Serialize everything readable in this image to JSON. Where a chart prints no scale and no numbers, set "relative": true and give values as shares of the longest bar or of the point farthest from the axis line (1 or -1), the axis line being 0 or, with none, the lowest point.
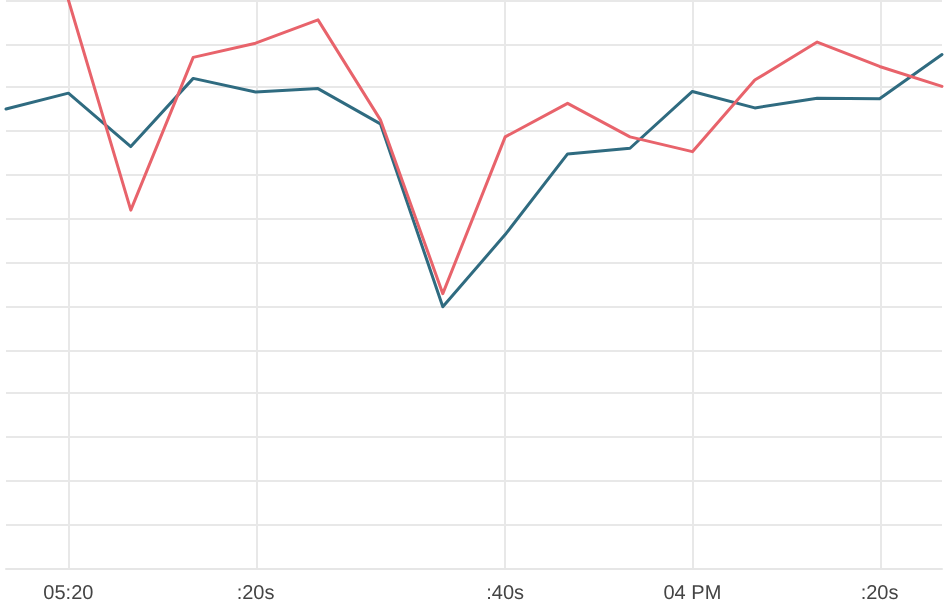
{
  "chart_data": {
    "type": "line",
    "relative": true,
    "grid": true,
    "tick_labels": "x",
    "marker": "none",
    "line_style": "solid",
    "categories": [
      null,
      "05:20",
      null,
      null,
      ":20s",
      null,
      null,
      null,
      ":40s",
      null,
      null,
      "04 PM",
      null,
      null,
      ":20s",
      null
    ],
    "series": [
      {
        "color": "#2f6b80",
        "values": [
          0.808,
          0.836,
          0.742,
          0.862,
          0.838,
          0.844,
          0.782,
          0.46,
          0.587,
          0.729,
          0.739,
          0.839,
          0.81,
          0.827,
          0.826,
          0.904
        ]
      },
      {
        "color": "#e8636b",
        "values": [
          null,
          1.0,
          0.63,
          0.899,
          0.924,
          0.965,
          0.789,
          0.483,
          0.759,
          0.818,
          0.759,
          0.733,
          0.859,
          0.926,
          0.883,
          0.848
        ]
      }
    ]
  }
}
